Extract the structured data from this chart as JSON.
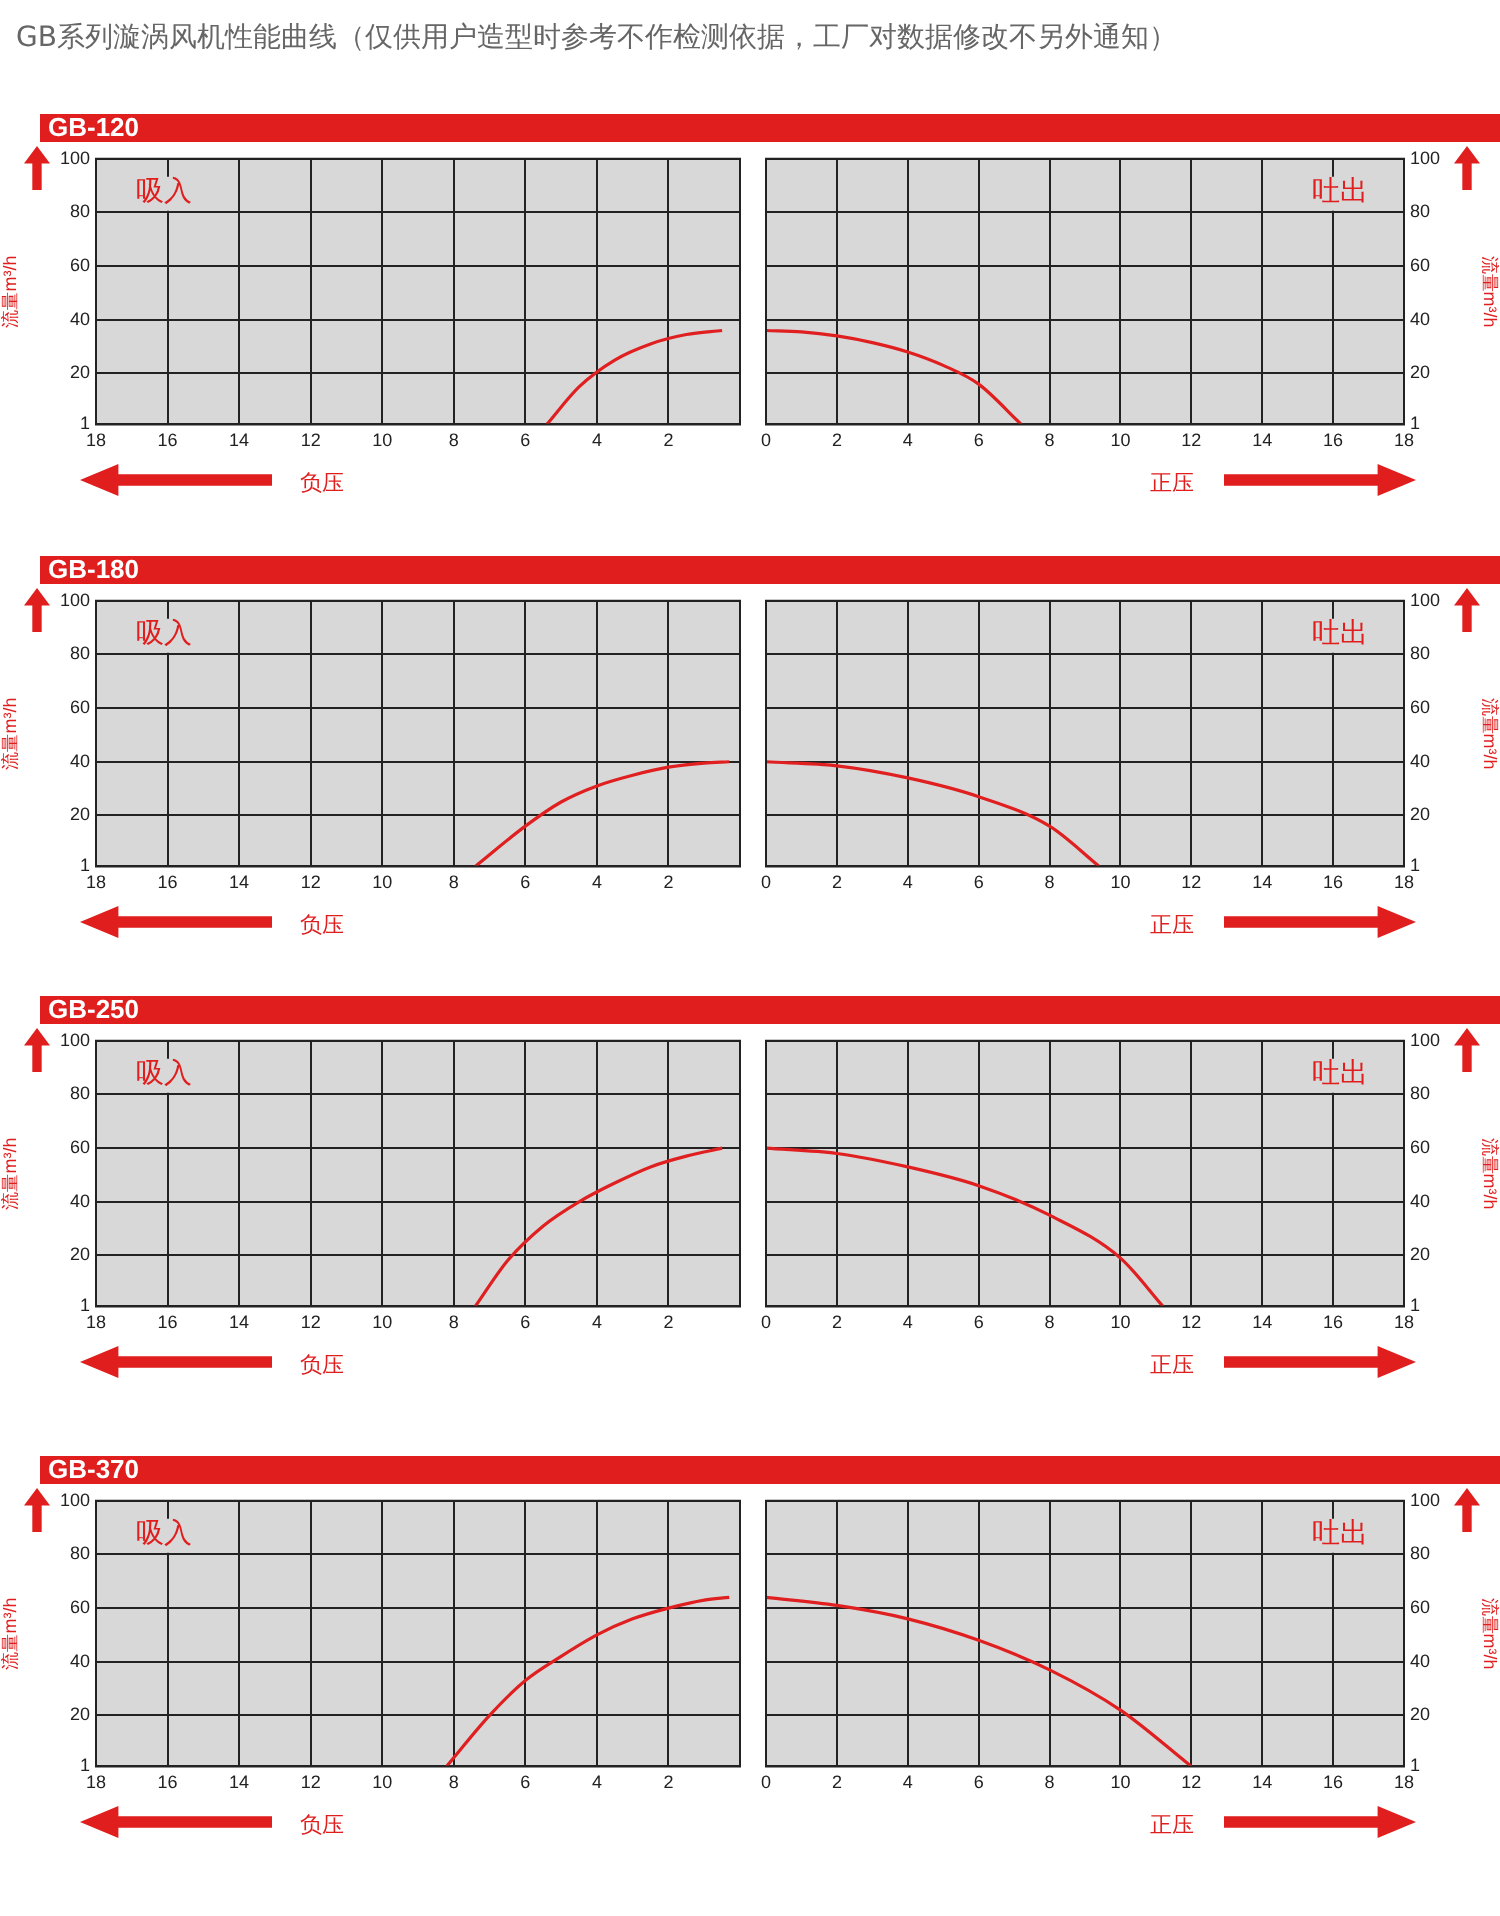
{
  "chart_data": [
    {
      "type": "other",
      "title": "GB系列漩涡风机性能曲线（仅供用户造型时参考不作检测依据，工厂对数据修改不另外通知）"
    },
    {
      "type": "line",
      "title": "GB-120",
      "xlabel": "负压",
      "ylabel": "流量m³/h",
      "annotations": [
        "吸入"
      ],
      "grid": true,
      "marker": "none",
      "xlim": [
        18,
        0
      ],
      "xticks": [
        18,
        16,
        14,
        12,
        10,
        8,
        6,
        4,
        2
      ],
      "ylim": [
        1,
        100
      ],
      "yticks": [
        1,
        20,
        40,
        60,
        80,
        100
      ],
      "series": [
        {
          "color": "#e02020",
          "x": [
            5.4,
            4.5,
            3.5,
            2.5,
            1.5,
            0.5
          ],
          "values": [
            1,
            15,
            25,
            31,
            34.5,
            36
          ]
        }
      ]
    },
    {
      "type": "line",
      "xlabel": "正压",
      "y2label": "流量m³/h",
      "annotations": [
        "吐出"
      ],
      "grid": true,
      "marker": "none",
      "xlim": [
        0,
        18
      ],
      "xticks": [
        0,
        2,
        4,
        6,
        8,
        10,
        12,
        14,
        16,
        18
      ],
      "y2lim": [
        1,
        100
      ],
      "y2ticks": [
        1,
        20,
        40,
        60,
        80,
        100
      ],
      "series": [
        {
          "color": "#e02020",
          "axis": "y2",
          "x": [
            0,
            1,
            2,
            3,
            4,
            5,
            6,
            7.2
          ],
          "values": [
            36,
            35.5,
            34,
            31.5,
            28,
            23,
            16,
            1
          ]
        }
      ]
    },
    {
      "type": "line",
      "title": "GB-180",
      "xlabel": "负压",
      "ylabel": "流量m³/h",
      "annotations": [
        "吸入"
      ],
      "grid": true,
      "marker": "none",
      "xlim": [
        18,
        0
      ],
      "xticks": [
        18,
        16,
        14,
        12,
        10,
        8,
        6,
        4,
        2
      ],
      "ylim": [
        1,
        100
      ],
      "yticks": [
        1,
        20,
        40,
        60,
        80,
        100
      ],
      "series": [
        {
          "color": "#e02020",
          "x": [
            7.4,
            6,
            5,
            4,
            3,
            2,
            1,
            0.3
          ],
          "values": [
            1,
            16,
            25,
            31,
            35,
            38,
            39.5,
            40
          ]
        }
      ]
    },
    {
      "type": "line",
      "xlabel": "正压",
      "y2label": "流量m³/h",
      "annotations": [
        "吐出"
      ],
      "grid": true,
      "marker": "none",
      "xlim": [
        0,
        18
      ],
      "xticks": [
        0,
        2,
        4,
        6,
        8,
        10,
        12,
        14,
        16,
        18
      ],
      "y2lim": [
        1,
        100
      ],
      "y2ticks": [
        1,
        20,
        40,
        60,
        80,
        100
      ],
      "series": [
        {
          "color": "#e02020",
          "axis": "y2",
          "x": [
            0,
            2,
            4,
            6,
            8,
            9.4
          ],
          "values": [
            40,
            38.5,
            34,
            27,
            16,
            1
          ]
        }
      ]
    },
    {
      "type": "line",
      "title": "GB-250",
      "xlabel": "负压",
      "ylabel": "流量m³/h",
      "annotations": [
        "吸入"
      ],
      "grid": true,
      "marker": "none",
      "xlim": [
        18,
        0
      ],
      "xticks": [
        18,
        16,
        14,
        12,
        10,
        8,
        6,
        4,
        2
      ],
      "ylim": [
        1,
        100
      ],
      "yticks": [
        1,
        20,
        40,
        60,
        80,
        100
      ],
      "series": [
        {
          "color": "#e02020",
          "x": [
            7.4,
            6.5,
            5.5,
            4.5,
            3.5,
            2.5,
            1.5,
            0.5
          ],
          "values": [
            1,
            18,
            31,
            40,
            47,
            53,
            57,
            60
          ]
        }
      ]
    },
    {
      "type": "line",
      "xlabel": "正压",
      "y2label": "流量m³/h",
      "annotations": [
        "吐出"
      ],
      "grid": true,
      "marker": "none",
      "xlim": [
        0,
        18
      ],
      "xticks": [
        0,
        2,
        4,
        6,
        8,
        10,
        12,
        14,
        16,
        18
      ],
      "y2lim": [
        1,
        100
      ],
      "y2ticks": [
        1,
        20,
        40,
        60,
        80,
        100
      ],
      "series": [
        {
          "color": "#e02020",
          "axis": "y2",
          "x": [
            0,
            2,
            4,
            6,
            8,
            10,
            11.2
          ],
          "values": [
            60,
            58,
            53,
            46,
            35,
            19,
            1
          ]
        }
      ]
    },
    {
      "type": "line",
      "title": "GB-370",
      "xlabel": "负压",
      "ylabel": "流量m³/h",
      "annotations": [
        "吸入"
      ],
      "grid": true,
      "marker": "none",
      "xlim": [
        18,
        0
      ],
      "xticks": [
        18,
        16,
        14,
        12,
        10,
        8,
        6,
        4,
        2
      ],
      "ylim": [
        1,
        100
      ],
      "yticks": [
        1,
        20,
        40,
        60,
        80,
        100
      ],
      "series": [
        {
          "color": "#e02020",
          "x": [
            8.2,
            7,
            6,
            5,
            4,
            3,
            2,
            1,
            0.3
          ],
          "values": [
            1,
            20,
            33,
            42,
            50,
            56,
            60,
            63,
            64
          ]
        }
      ]
    },
    {
      "type": "line",
      "xlabel": "正压",
      "y2label": "流量m³/h",
      "annotations": [
        "吐出"
      ],
      "grid": true,
      "marker": "none",
      "xlim": [
        0,
        18
      ],
      "xticks": [
        0,
        2,
        4,
        6,
        8,
        10,
        12,
        14,
        16,
        18
      ],
      "y2lim": [
        1,
        100
      ],
      "y2ticks": [
        1,
        20,
        40,
        60,
        80,
        100
      ],
      "series": [
        {
          "color": "#e02020",
          "axis": "y2",
          "x": [
            0,
            2,
            4,
            6,
            8,
            10,
            12
          ],
          "values": [
            64,
            61,
            56,
            48,
            37,
            22,
            1
          ]
        }
      ]
    }
  ]
}
